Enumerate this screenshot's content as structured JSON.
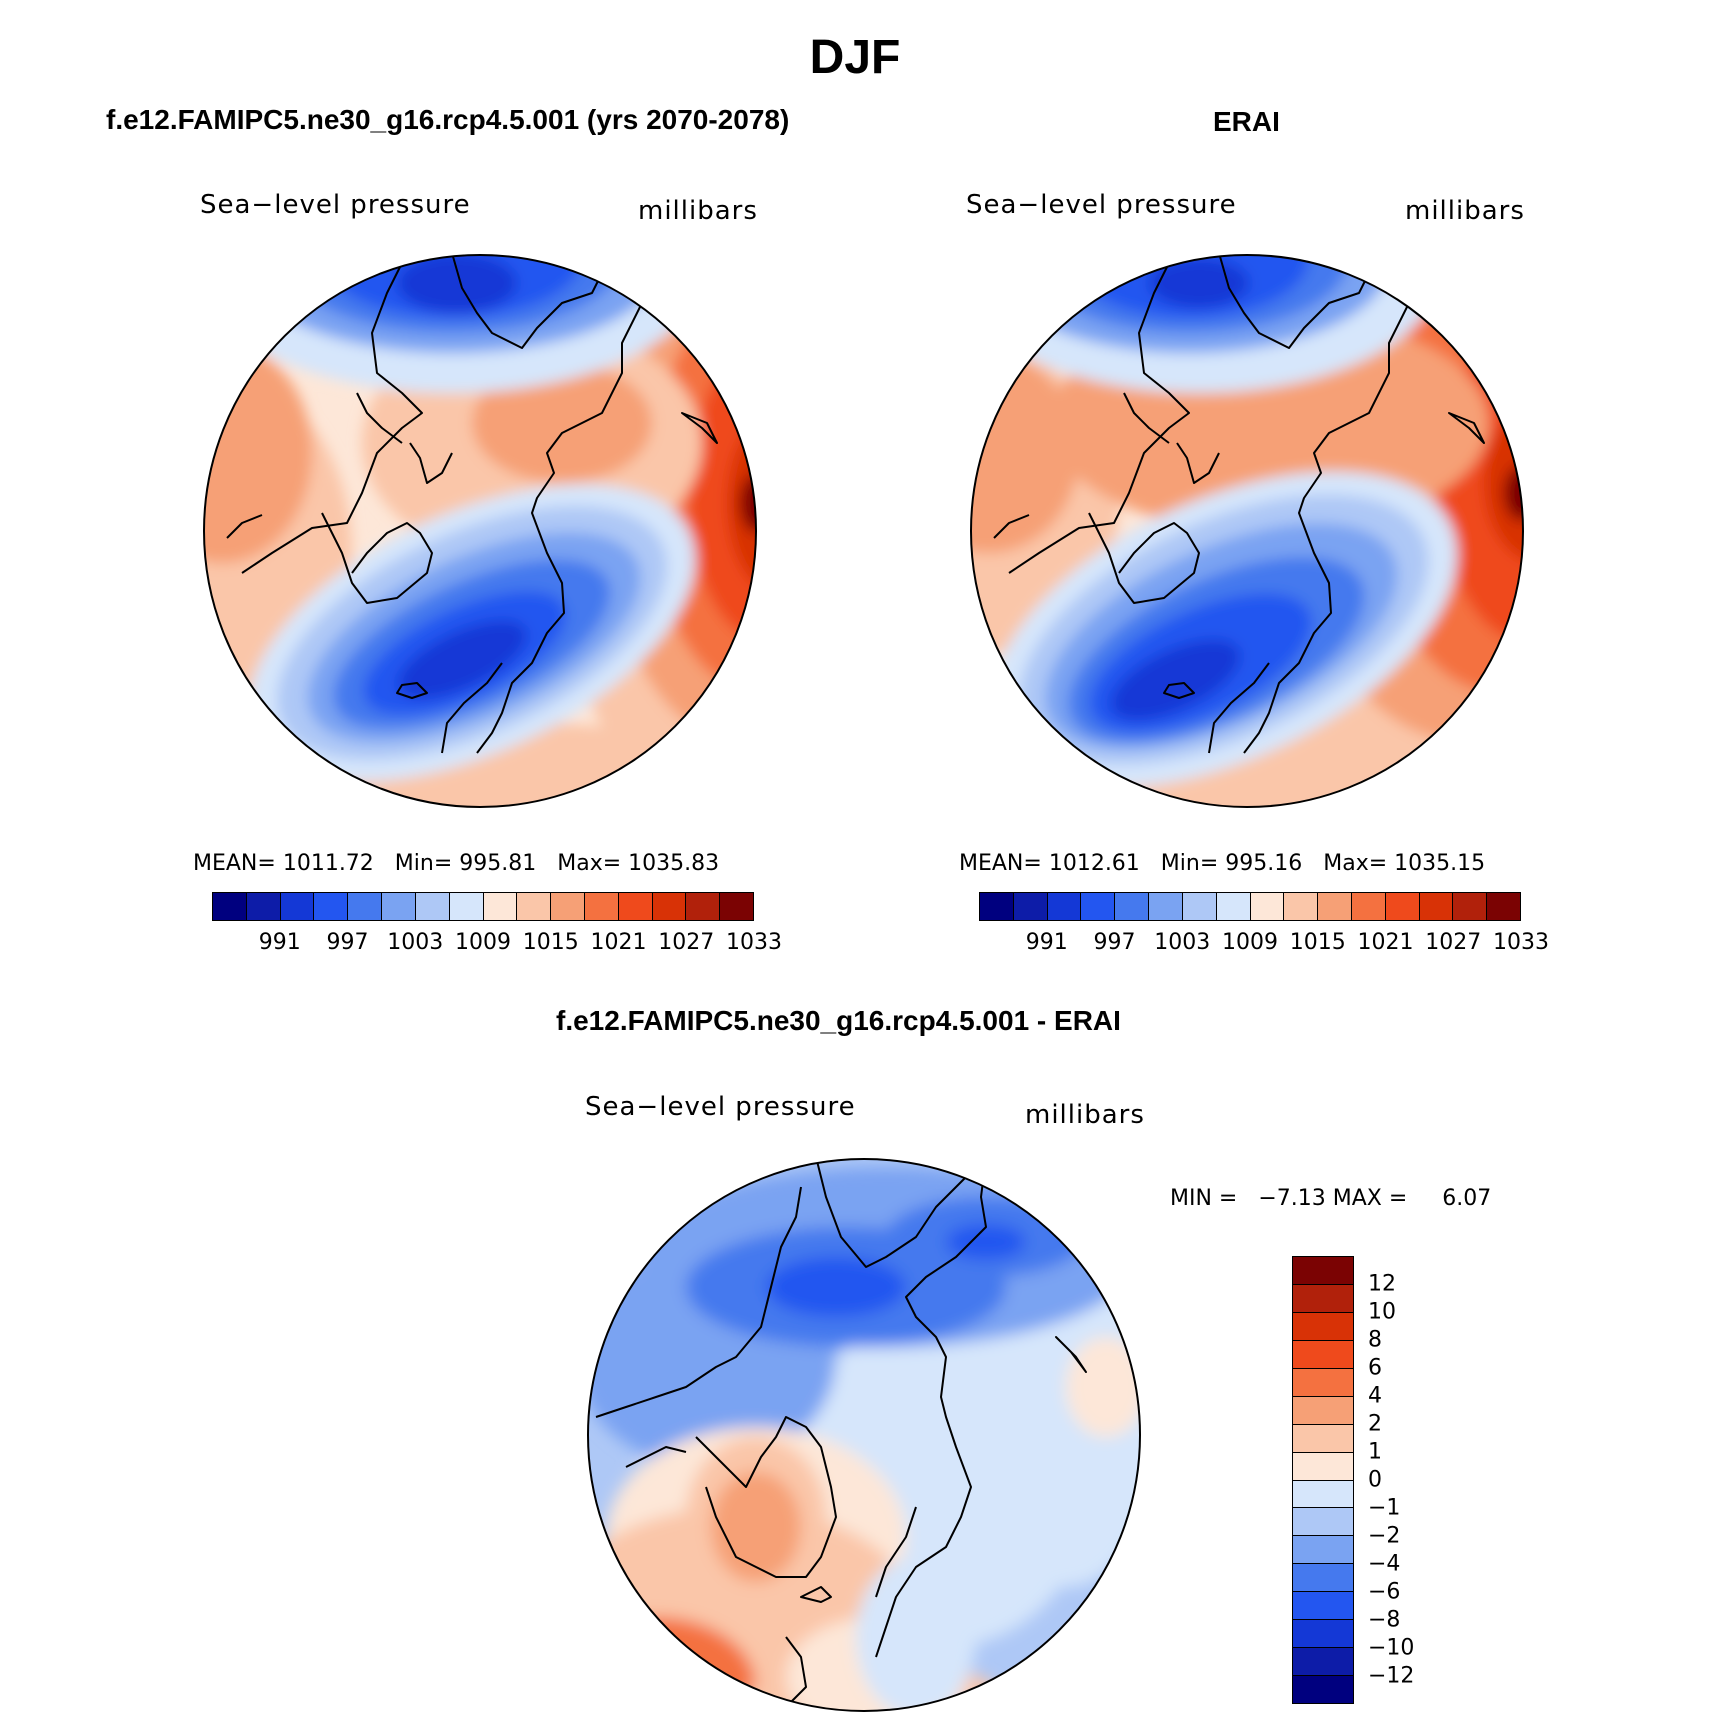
{
  "title": "DJF",
  "panels": [
    {
      "title": "f.e12.FAMIPC5.ne30_g16.rcp4.5.001 (yrs 2070-2078)",
      "left_label": "Sea−level pressure",
      "right_label": "millibars",
      "stats": {
        "mean_label": "MEAN=",
        "mean": "1011.72",
        "min_label": "Min=",
        "min": "995.81",
        "max_label": "Max=",
        "max": "1035.83"
      }
    },
    {
      "title": "ERAI",
      "left_label": "Sea−level pressure",
      "right_label": "millibars",
      "stats": {
        "mean_label": "MEAN=",
        "mean": "1012.61",
        "min_label": "Min=",
        "min": "995.16",
        "max_label": "Max=",
        "max": "1035.15"
      }
    },
    {
      "title": "f.e12.FAMIPC5.ne30_g16.rcp4.5.001 - ERAI",
      "left_label": "Sea−level pressure",
      "right_label": "millibars",
      "stats": {
        "min_label": "MIN =",
        "min": "−7.13",
        "max_label": "MAX =",
        "max": "6.07"
      }
    }
  ],
  "colorbar_abs": {
    "colors": [
      "#00007f",
      "#0d1ca8",
      "#1438d6",
      "#2356f0",
      "#4579ee",
      "#7aa3f2",
      "#aec8f6",
      "#d6e6fb",
      "#fde7d8",
      "#fac6a9",
      "#f6a076",
      "#f47140",
      "#ef4a1c",
      "#d83206",
      "#b1210b",
      "#7b0303"
    ],
    "tick_labels": [
      "991",
      "997",
      "1003",
      "1009",
      "1015",
      "1021",
      "1027",
      "1033"
    ]
  },
  "colorbar_diff": {
    "colors": [
      "#7b0303",
      "#b1210b",
      "#d83206",
      "#ef4a1c",
      "#f47140",
      "#f6a076",
      "#fac6a9",
      "#fde7d8",
      "#d6e6fb",
      "#aec8f6",
      "#7aa3f2",
      "#4579ee",
      "#2356f0",
      "#1438d6",
      "#0d1ca8",
      "#00007f"
    ],
    "tick_labels": [
      "12",
      "10",
      "8",
      "6",
      "4",
      "2",
      "1",
      "0",
      "−1",
      "−2",
      "−4",
      "−6",
      "−8",
      "−10",
      "−12"
    ]
  }
}
